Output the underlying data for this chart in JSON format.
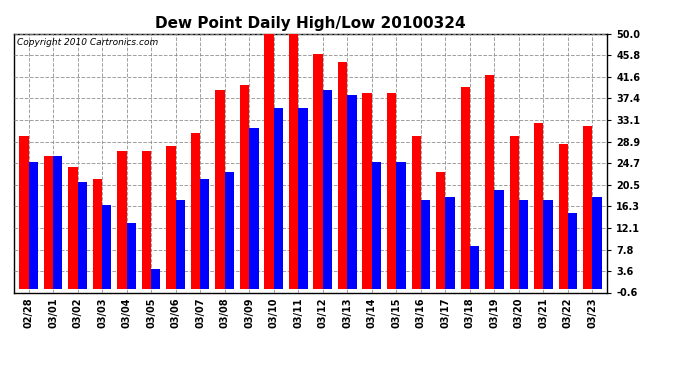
{
  "title": "Dew Point Daily High/Low 20100324",
  "copyright": "Copyright 2010 Cartronics.com",
  "dates": [
    "02/28",
    "03/01",
    "03/02",
    "03/03",
    "03/04",
    "03/05",
    "03/06",
    "03/07",
    "03/08",
    "03/09",
    "03/10",
    "03/11",
    "03/12",
    "03/13",
    "03/14",
    "03/15",
    "03/16",
    "03/17",
    "03/18",
    "03/19",
    "03/20",
    "03/21",
    "03/22",
    "03/23"
  ],
  "highs": [
    30.0,
    26.0,
    24.0,
    21.5,
    27.0,
    27.0,
    28.0,
    30.5,
    39.0,
    40.0,
    50.0,
    50.0,
    46.0,
    44.5,
    38.5,
    38.5,
    30.0,
    23.0,
    39.5,
    42.0,
    30.0,
    32.5,
    28.5,
    32.0
  ],
  "lows": [
    25.0,
    26.0,
    21.0,
    16.5,
    13.0,
    4.0,
    17.5,
    21.5,
    23.0,
    31.5,
    35.5,
    35.5,
    39.0,
    38.0,
    25.0,
    25.0,
    17.5,
    18.0,
    8.5,
    19.5,
    17.5,
    17.5,
    15.0,
    18.0
  ],
  "high_color": "#ff0000",
  "low_color": "#0000ff",
  "bg_color": "#ffffff",
  "plot_bg_color": "#ffffff",
  "grid_color": "#888888",
  "ylim": [
    -0.6,
    50.0
  ],
  "yticks": [
    50.0,
    45.8,
    41.6,
    37.4,
    33.1,
    28.9,
    24.7,
    20.5,
    16.3,
    12.1,
    7.8,
    3.6,
    -0.6
  ],
  "title_fontsize": 11,
  "tick_fontsize": 7,
  "copyright_fontsize": 6.5
}
